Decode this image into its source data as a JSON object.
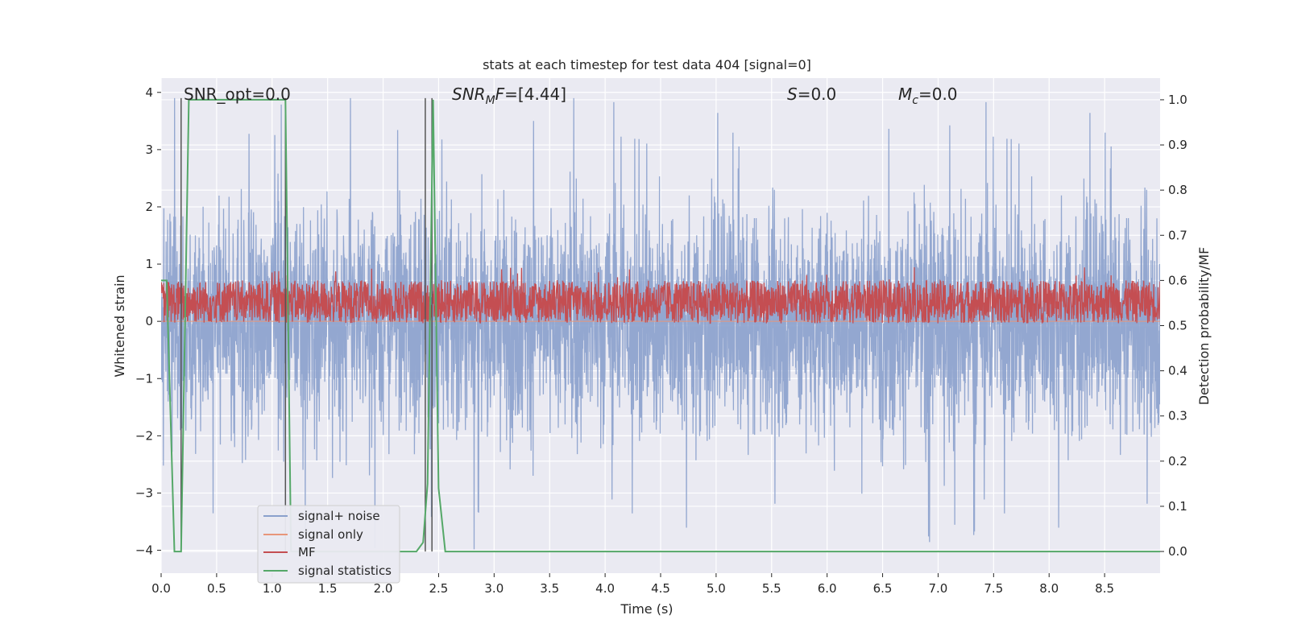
{
  "chart_data": {
    "type": "line",
    "title": "stats at each timestep for test data 404 [signal=0]",
    "xlabel": "Time (s)",
    "ylabel_left": "Whitened strain",
    "ylabel_right": "Detection probability/MF",
    "xlim": [
      0,
      9.0
    ],
    "ylim_left": [
      -4.4,
      4.25
    ],
    "ylim_right": [
      -0.048,
      1.048
    ],
    "x_ticks": [
      0.0,
      0.5,
      1.0,
      1.5,
      2.0,
      2.5,
      3.0,
      3.5,
      4.0,
      4.5,
      5.0,
      5.5,
      6.0,
      6.5,
      7.0,
      7.5,
      8.0,
      8.5
    ],
    "x_tick_labels": [
      "0.0",
      "0.5",
      "1.0",
      "1.5",
      "2.0",
      "2.5",
      "3.0",
      "3.5",
      "4.0",
      "4.5",
      "5.0",
      "5.5",
      "6.0",
      "6.5",
      "7.0",
      "7.5",
      "8.0",
      "8.5"
    ],
    "y_left_ticks": [
      4,
      3,
      2,
      1,
      0,
      -1,
      -2,
      -3,
      -4
    ],
    "y_left_tick_labels": [
      "4",
      "3",
      "2",
      "1",
      "0",
      "−1",
      "−2",
      "−3",
      "−4"
    ],
    "y_right_ticks": [
      1.0,
      0.9,
      0.8,
      0.7,
      0.6,
      0.5,
      0.4,
      0.3,
      0.2,
      0.1,
      0.0
    ],
    "y_right_tick_labels": [
      "1.0",
      "0.9",
      "0.8",
      "0.7",
      "0.6",
      "0.5",
      "0.4",
      "0.3",
      "0.2",
      "0.1",
      "0.0"
    ],
    "grid": true,
    "legend_position": "lower-left",
    "annotations": {
      "snr_opt": "SNR_opt=0.0",
      "snr_mf": "=[4.44]",
      "snr_mf_symbol": "SNR",
      "snr_mf_sub": "M",
      "snr_mf_tail": "F",
      "s_label": "S",
      "s_value": "=0.0",
      "mc_label": "M",
      "mc_sub": "c",
      "mc_value": "=0.0"
    },
    "series": [
      {
        "name": "signal+ noise",
        "color": "#8aa0cc",
        "axis": "left",
        "description_stats": {
          "x_start": 0.0,
          "x_end": 9.0,
          "typical_range": [
            -2.0,
            2.5
          ],
          "extremes": [
            -4.0,
            3.9
          ]
        }
      },
      {
        "name": "signal only",
        "color": "#e8967a",
        "axis": "left",
        "values_constant": 0.0
      },
      {
        "name": "MF",
        "color": "#c44e52",
        "axis": "right",
        "description_stats": {
          "x_start": 0.0,
          "x_end": 9.0,
          "typical_range": [
            0.505,
            0.6
          ],
          "peak": 0.63
        }
      },
      {
        "name": "signal statistics",
        "color": "#55a868",
        "axis": "right",
        "x": [
          0.0,
          0.05,
          0.12,
          0.18,
          0.25,
          1.12,
          1.17,
          2.3,
          2.36,
          2.4,
          2.45,
          2.5,
          2.56,
          9.0
        ],
        "y": [
          0.6,
          0.6,
          0.0,
          0.0,
          1.0,
          1.0,
          0.0,
          0.0,
          0.02,
          0.15,
          1.0,
          0.14,
          0.0,
          0.0
        ]
      }
    ],
    "vertical_markers": {
      "color": "#555555",
      "x": [
        0.18,
        1.12,
        2.38,
        2.44
      ]
    }
  }
}
